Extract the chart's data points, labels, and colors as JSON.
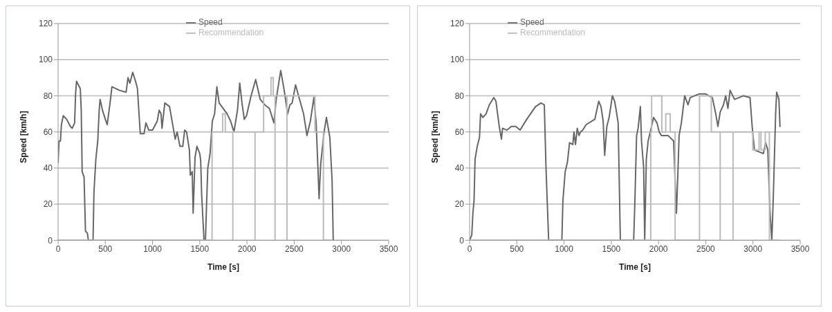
{
  "chart_data": [
    {
      "type": "line",
      "xlabel": "Time [s]",
      "ylabel": "Speed [km/h]",
      "xlim": [
        0,
        3500
      ],
      "xticks": [
        0,
        500,
        1000,
        1500,
        2000,
        2500,
        3000,
        3500
      ],
      "ylim": [
        0,
        120
      ],
      "yticks": [
        0,
        20,
        40,
        60,
        80,
        100,
        120
      ],
      "grid": "y",
      "legend": "top",
      "series": [
        {
          "name": "Speed",
          "color": "#666666",
          "x": [
            0,
            10,
            25,
            35,
            55,
            90,
            130,
            150,
            175,
            185,
            195,
            215,
            235,
            245,
            255,
            275,
            290,
            310,
            320,
            370,
            380,
            400,
            420,
            435,
            445,
            470,
            500,
            520,
            550,
            570,
            650,
            720,
            740,
            760,
            790,
            820,
            840,
            870,
            910,
            930,
            960,
            1000,
            1050,
            1070,
            1090,
            1100,
            1130,
            1180,
            1210,
            1240,
            1260,
            1290,
            1320,
            1340,
            1360,
            1390,
            1400,
            1420,
            1430,
            1450,
            1470,
            1500,
            1510,
            1520,
            1545,
            1560,
            1572,
            1585,
            1609,
            1633,
            1657,
            1681,
            1705,
            1790,
            1826,
            1862,
            1899,
            1923,
            1947,
            1971,
            1995,
            2043,
            2092,
            2140,
            2188,
            2237,
            2285,
            2309,
            2357,
            2394,
            2430,
            2454,
            2478,
            2514,
            2551,
            2599,
            2635,
            2671,
            2708,
            2732,
            2751,
            2763,
            2780,
            2816,
            2841,
            2877,
            2901,
            2913
          ],
          "values": [
            43,
            55,
            55,
            64,
            69,
            67,
            63,
            62,
            65,
            81,
            88,
            86,
            84,
            72,
            38,
            35,
            5,
            4,
            0,
            0,
            27,
            45,
            55,
            72,
            78,
            72,
            67,
            64,
            76,
            85,
            83,
            82,
            90,
            87,
            93,
            88,
            84,
            59,
            59,
            65,
            61,
            61,
            66,
            72,
            70,
            62,
            76,
            74,
            65,
            56,
            60,
            52,
            52,
            61,
            60,
            50,
            36,
            38,
            15,
            46,
            52,
            48,
            44,
            25,
            0,
            0,
            20,
            40,
            48,
            66,
            70,
            85,
            76,
            70,
            66,
            60,
            72,
            87,
            76,
            67,
            69,
            80,
            89,
            78,
            75,
            73,
            65,
            78,
            94,
            83,
            70,
            75,
            76,
            86,
            79,
            70,
            58,
            66,
            79,
            65,
            40,
            23,
            42,
            60,
            68,
            57,
            33,
            0
          ]
        },
        {
          "name": "Recommendation",
          "color": "#bbbbbb",
          "x": [
            0,
            1630,
            1630,
            1742,
            1742,
            1770,
            1770,
            1850,
            1850,
            1850,
            2085,
            2085,
            2085,
            2176,
            2176,
            2254,
            2254,
            2278,
            2278,
            2297,
            2297,
            2297,
            2423,
            2423,
            2423,
            2720,
            2720,
            2809,
            2809,
            2900
          ],
          "values": [
            0,
            0,
            60,
            60,
            70,
            70,
            60,
            60,
            0,
            60,
            60,
            0,
            60,
            60,
            80,
            80,
            90,
            90,
            80,
            80,
            0,
            80,
            80,
            0,
            80,
            80,
            60,
            60,
            0,
            0
          ]
        }
      ]
    },
    {
      "type": "line",
      "xlabel": "Time [s]",
      "ylabel": "Speed [km/h]",
      "xlim": [
        0,
        3500
      ],
      "xticks": [
        0,
        500,
        1000,
        1500,
        2000,
        2500,
        3000,
        3500
      ],
      "ylim": [
        0,
        120
      ],
      "yticks": [
        0,
        20,
        40,
        60,
        80,
        100,
        120
      ],
      "grid": "y",
      "legend": "top left",
      "series": [
        {
          "name": "Speed",
          "color": "#666666",
          "x": [
            0,
            23,
            35,
            47,
            58,
            81,
            105,
            116,
            140,
            174,
            209,
            256,
            279,
            314,
            337,
            349,
            395,
            442,
            488,
            535,
            605,
            698,
            756,
            791,
            809,
            837,
            977,
            988,
            1012,
            1035,
            1058,
            1093,
            1105,
            1121,
            1140,
            1158,
            1174,
            1198,
            1233,
            1326,
            1367,
            1391,
            1414,
            1430,
            1453,
            1477,
            1512,
            1535,
            1549,
            1573,
            1596,
            1737,
            1749,
            1768,
            1784,
            1808,
            1820,
            1843,
            1854,
            1871,
            1890,
            1913,
            1948,
            1984,
            2007,
            2031,
            2101,
            2160,
            2171,
            2190,
            2207,
            2218,
            2242,
            2277,
            2312,
            2336,
            2383,
            2430,
            2500,
            2570,
            2606,
            2629,
            2653,
            2688,
            2711,
            2735,
            2758,
            2805,
            2852,
            2899,
            2969,
            2993,
            3016,
            3063,
            3110,
            3134,
            3157,
            3181,
            3200,
            3216,
            3240,
            3251,
            3275,
            3286
          ],
          "values": [
            0,
            3,
            15,
            22,
            45,
            52,
            57,
            70,
            68,
            70,
            75,
            79,
            77,
            63,
            56,
            62,
            61,
            63,
            63,
            61,
            67,
            74,
            76,
            75,
            40,
            0,
            0,
            22,
            38,
            43,
            54,
            53,
            60,
            53,
            62,
            58,
            60,
            61,
            64,
            67,
            77,
            74,
            66,
            47,
            63,
            68,
            80,
            77,
            73,
            65,
            0,
            0,
            20,
            58,
            62,
            74,
            55,
            40,
            0,
            45,
            55,
            60,
            68,
            65,
            60,
            58,
            58,
            55,
            40,
            15,
            40,
            58,
            65,
            80,
            75,
            79,
            80,
            81,
            81,
            79,
            70,
            63,
            71,
            75,
            80,
            73,
            83,
            78,
            79,
            80,
            79,
            62,
            50,
            49,
            48,
            54,
            50,
            15,
            0,
            25,
            70,
            82,
            78,
            63
          ]
        },
        {
          "name": "Recommendation",
          "color": "#bbbbbb",
          "x": [
            0,
            1918,
            1918,
            1927,
            1927,
            2035,
            2035,
            2077,
            2077,
            2124,
            2124,
            2176,
            2176,
            2434,
            2434,
            2559,
            2559,
            2653,
            2653,
            2653,
            2789,
            2789,
            2789,
            2998,
            2998,
            3065,
            3065,
            3085,
            3085,
            3130,
            3130,
            3174,
            3174,
            3280
          ],
          "values": [
            0,
            0,
            60,
            60,
            80,
            80,
            60,
            60,
            70,
            70,
            60,
            60,
            0,
            0,
            80,
            80,
            60,
            60,
            0,
            60,
            60,
            0,
            60,
            60,
            50,
            50,
            60,
            60,
            50,
            50,
            60,
            60,
            0,
            0
          ]
        }
      ]
    }
  ]
}
